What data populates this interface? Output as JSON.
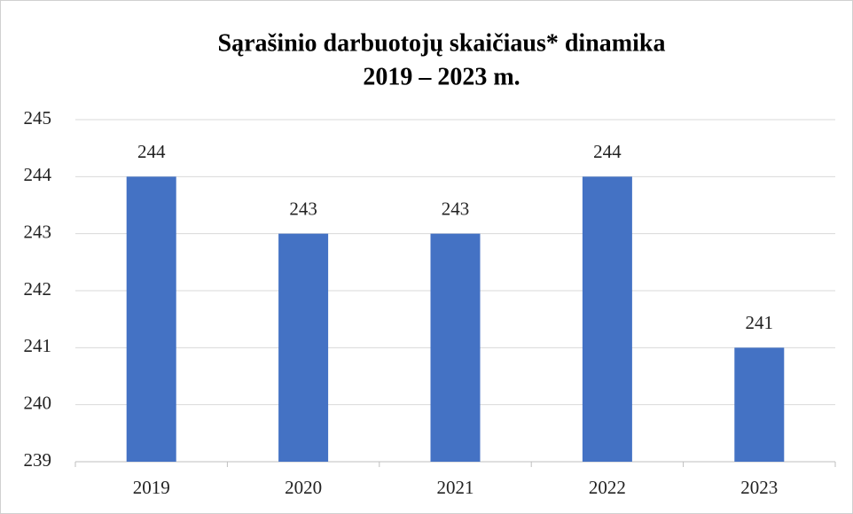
{
  "chart_data": {
    "type": "bar",
    "title": [
      "Sąrašinio darbuotojų skaičiaus* dinamika",
      "2019 – 2023 m."
    ],
    "categories": [
      "2019",
      "2020",
      "2021",
      "2022",
      "2023"
    ],
    "values": [
      244,
      243,
      243,
      244,
      241
    ],
    "color": "#4472c4",
    "ylim": [
      239,
      245
    ],
    "yticks": [
      239,
      240,
      241,
      242,
      243,
      244,
      245
    ],
    "grid": true
  }
}
